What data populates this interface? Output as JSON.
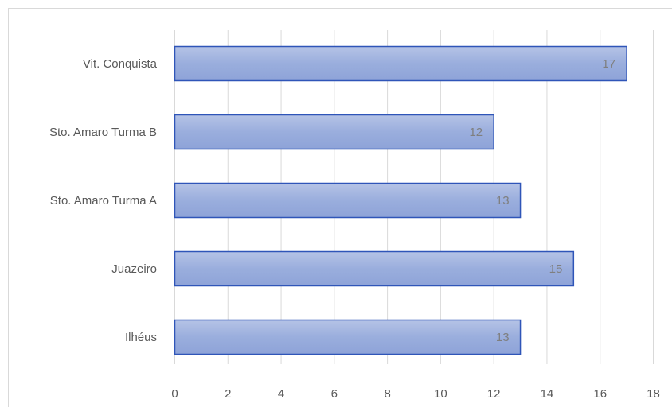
{
  "chart_data": {
    "type": "bar",
    "orientation": "horizontal",
    "title": "",
    "xlabel": "",
    "ylabel": "",
    "categories": [
      "Vit. Conquista",
      "Sto. Amaro Turma B",
      "Sto. Amaro Turma A",
      "Juazeiro",
      "Ilhéus"
    ],
    "values": [
      17,
      12,
      13,
      15,
      13
    ],
    "data_labels": [
      "17",
      "12",
      "13",
      "15",
      "13"
    ],
    "xlim": [
      0,
      18
    ],
    "x_ticks": [
      0,
      2,
      4,
      6,
      8,
      10,
      12,
      14,
      16,
      18
    ],
    "x_tick_labels": [
      "0",
      "2",
      "4",
      "6",
      "8",
      "10",
      "12",
      "14",
      "16",
      "18"
    ],
    "grid": true,
    "legend": "none",
    "colors": {
      "bar_fill_top": "#b5c3e6",
      "bar_fill_mid": "#9aaedd",
      "bar_fill_bottom": "#8ea3d8",
      "bar_border": "#2f55b8",
      "gridline": "#d9d9d9",
      "text": "#595959",
      "data_label": "#7f7f7f"
    }
  }
}
